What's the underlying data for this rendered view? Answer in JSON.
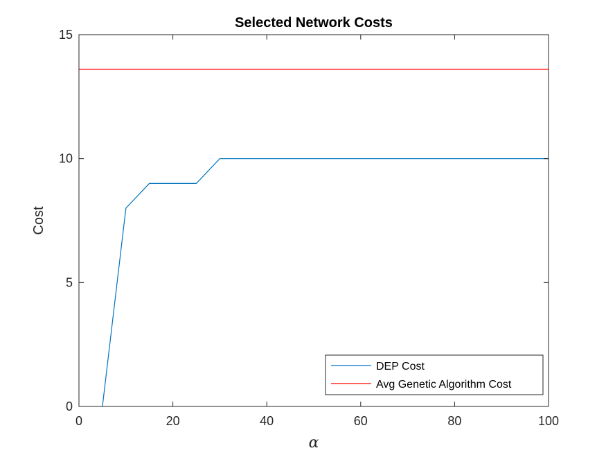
{
  "chart_data": {
    "type": "line",
    "title": "Selected Network Costs",
    "xlabel": "α",
    "ylabel": "Cost",
    "xlim": [
      0,
      100
    ],
    "ylim": [
      0,
      15
    ],
    "x_ticks": [
      0,
      20,
      40,
      60,
      80,
      100
    ],
    "y_ticks": [
      0,
      5,
      10,
      15
    ],
    "grid": false,
    "legend_position": "bottom-right",
    "series": [
      {
        "name": "DEP Cost",
        "color": "#0072BD",
        "x": [
          5,
          10,
          15,
          20,
          25,
          30,
          35,
          40,
          45,
          50,
          55,
          60,
          65,
          70,
          75,
          80,
          85,
          90,
          95,
          100
        ],
        "y": [
          0,
          8,
          9,
          9,
          9,
          10,
          10,
          10,
          10,
          10,
          10,
          10,
          10,
          10,
          10,
          10,
          10,
          10,
          10,
          10
        ]
      },
      {
        "name": "Avg Genetic Algorithm Cost",
        "color": "#FF0000",
        "x": [
          0,
          100
        ],
        "y": [
          13.6,
          13.6
        ]
      }
    ]
  }
}
